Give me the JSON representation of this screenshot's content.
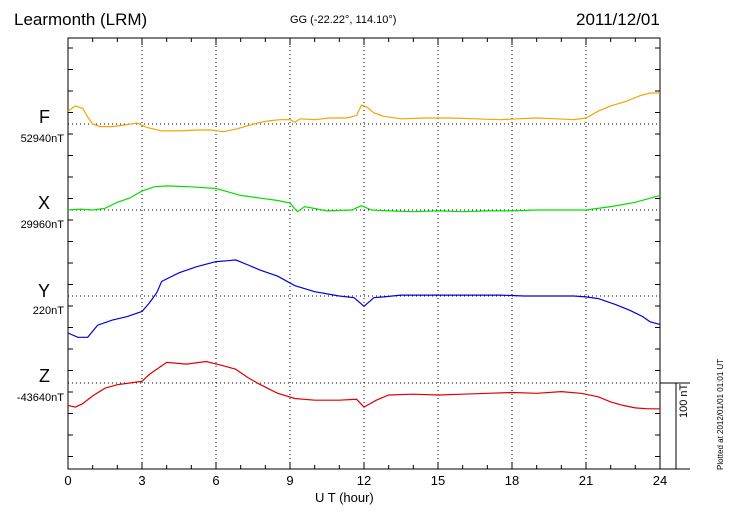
{
  "header": {
    "title": "Learmonth (LRM)",
    "coords": "GG (-22.22°, 114.10°)",
    "date": "2011/12/01"
  },
  "footer": "Plotted at 2012/01/01 01:01  UT",
  "chart_data": {
    "type": "line",
    "xlabel": "U T (hour)",
    "xlim": [
      0,
      24
    ],
    "xticks": [
      0,
      3,
      6,
      9,
      12,
      15,
      18,
      21,
      24
    ],
    "scale_bar_label": "100 nT",
    "scale_bar_nT": 100,
    "series": [
      {
        "name": "F",
        "baseline_label": "52940nT",
        "baseline": 52940,
        "color": "#f5a400",
        "x": [
          0,
          0.3,
          0.6,
          0.8,
          1.0,
          1.3,
          1.8,
          2.3,
          2.8,
          3.2,
          3.8,
          4.5,
          5.2,
          5.8,
          6.3,
          6.8,
          7.3,
          7.8,
          8.2,
          8.6,
          9.0,
          9.2,
          9.4,
          10.0,
          10.6,
          11.3,
          11.7,
          11.9,
          12.1,
          12.4,
          12.8,
          13.5,
          14.5,
          15.5,
          16.5,
          17.5,
          18.2,
          19.0,
          19.8,
          20.5,
          21.0,
          21.5,
          22.0,
          22.6,
          23.2,
          23.6,
          24.0
        ],
        "y": [
          52955,
          52961,
          52958,
          52948,
          52940,
          52937,
          52937,
          52939,
          52941,
          52936,
          52932,
          52932,
          52933,
          52933,
          52931,
          52934,
          52938,
          52942,
          52944,
          52945,
          52945,
          52942,
          52946,
          52945,
          52947,
          52947,
          52950,
          52962,
          52960,
          52953,
          52949,
          52946,
          52947,
          52947,
          52946,
          52945,
          52946,
          52947,
          52946,
          52945,
          52947,
          52955,
          52961,
          52966,
          52973,
          52976,
          52976
        ]
      },
      {
        "name": "X",
        "baseline_label": "29960nT",
        "baseline": 29960,
        "color": "#00e000",
        "x": [
          0,
          0.5,
          1.0,
          1.5,
          2.0,
          2.5,
          3.0,
          3.5,
          4.0,
          5.0,
          6.0,
          6.5,
          7.0,
          7.5,
          8.0,
          8.5,
          9.0,
          9.3,
          9.6,
          10.5,
          11.5,
          11.9,
          12.3,
          13.0,
          14.0,
          15.0,
          16.0,
          17.0,
          18.0,
          19.0,
          20.0,
          21.0,
          22.0,
          23.0,
          24.0
        ],
        "y": [
          29960,
          29961,
          29960,
          29962,
          29969,
          29974,
          29982,
          29987,
          29988,
          29987,
          29985,
          29981,
          29977,
          29975,
          29973,
          29971,
          29968,
          29958,
          29964,
          29959,
          29960,
          29965,
          29960,
          29959,
          29958,
          29959,
          29958,
          29959,
          29959,
          29960,
          29960,
          29960,
          29964,
          29969,
          29977
        ]
      },
      {
        "name": "Y",
        "baseline_label": "220nT",
        "baseline": 220,
        "color": "#0000e0",
        "x": [
          0,
          0.4,
          0.8,
          1.2,
          1.8,
          2.4,
          3.0,
          3.3,
          3.6,
          3.8,
          4.5,
          5.2,
          6.0,
          6.5,
          6.8,
          7.3,
          7.8,
          8.5,
          9.2,
          10.0,
          11.0,
          11.6,
          12.0,
          12.4,
          12.8,
          13.5,
          14.5,
          15.5,
          16.5,
          17.5,
          18.5,
          19.5,
          20.5,
          21.0,
          21.5,
          22.2,
          22.8,
          23.3,
          23.6,
          24.0
        ],
        "y": [
          177,
          172,
          172,
          186,
          192,
          196,
          202,
          212,
          224,
          237,
          247,
          254,
          260,
          261,
          262,
          256,
          250,
          243,
          232,
          225,
          220,
          218,
          208,
          218,
          219,
          221,
          221,
          221,
          221,
          221,
          220,
          220,
          220,
          219,
          217,
          210,
          203,
          196,
          190,
          187
        ]
      },
      {
        "name": "Z",
        "baseline_label": "-43640nT",
        "baseline": -43640,
        "color": "#e00000",
        "x": [
          0,
          0.3,
          0.6,
          1.0,
          1.5,
          2.0,
          2.5,
          3.0,
          3.3,
          3.7,
          4.0,
          4.8,
          5.6,
          6.3,
          6.8,
          7.3,
          7.8,
          8.5,
          9.2,
          10.0,
          11.0,
          11.7,
          12.0,
          12.5,
          13.0,
          14.0,
          15.0,
          16.0,
          17.0,
          18.0,
          19.0,
          20.0,
          20.8,
          21.5,
          22.0,
          22.5,
          23.0,
          23.5,
          24.0
        ],
        "y": [
          -43666,
          -43668,
          -43664,
          -43655,
          -43646,
          -43642,
          -43640,
          -43638,
          -43630,
          -43622,
          -43616,
          -43618,
          -43615,
          -43620,
          -43624,
          -43634,
          -43642,
          -43652,
          -43658,
          -43660,
          -43660,
          -43659,
          -43668,
          -43660,
          -43654,
          -43653,
          -43654,
          -43653,
          -43652,
          -43651,
          -43652,
          -43650,
          -43652,
          -43656,
          -43662,
          -43666,
          -43669,
          -43670,
          -43670
        ]
      }
    ]
  }
}
